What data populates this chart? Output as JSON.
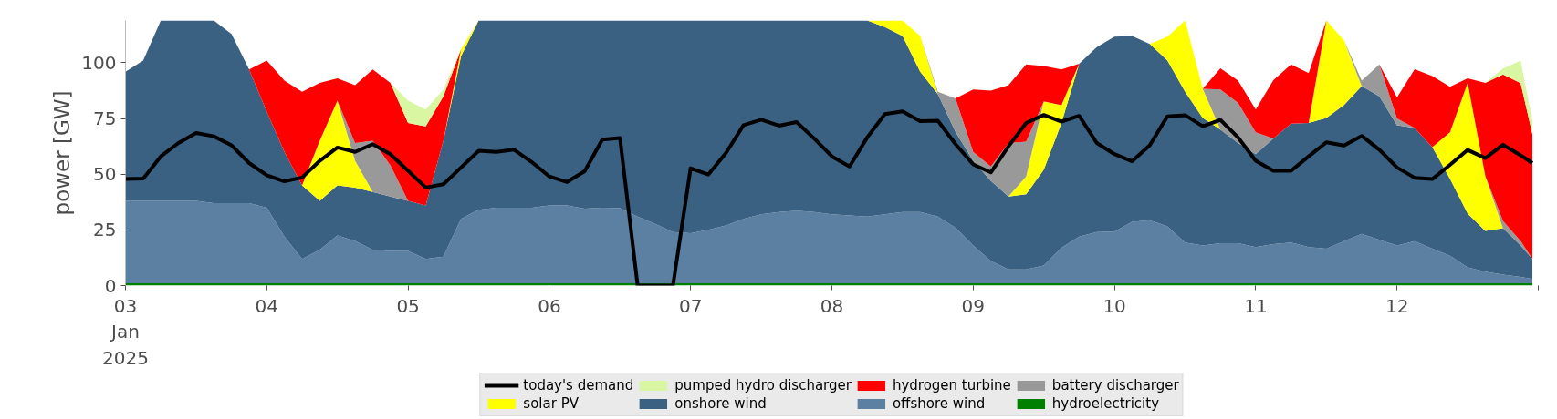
{
  "chart_data": {
    "type": "area",
    "stacked": true,
    "ylabel": "power [GW]",
    "x": [
      "2025-01-03T00:00",
      "2025-01-03T03:00",
      "2025-01-03T06:00",
      "2025-01-03T09:00",
      "2025-01-03T12:00",
      "2025-01-03T15:00",
      "2025-01-03T18:00",
      "2025-01-03T21:00",
      "2025-01-04T00:00",
      "2025-01-04T03:00",
      "2025-01-04T06:00",
      "2025-01-04T09:00",
      "2025-01-04T12:00",
      "2025-01-04T15:00",
      "2025-01-04T18:00",
      "2025-01-04T21:00",
      "2025-01-05T00:00",
      "2025-01-05T03:00",
      "2025-01-05T06:00",
      "2025-01-05T09:00",
      "2025-01-05T12:00",
      "2025-01-05T15:00",
      "2025-01-05T18:00",
      "2025-01-05T21:00",
      "2025-01-06T00:00",
      "2025-01-06T03:00",
      "2025-01-06T06:00",
      "2025-01-06T09:00",
      "2025-01-06T12:00",
      "2025-01-06T15:00",
      "2025-01-06T18:00",
      "2025-01-06T21:00",
      "2025-01-07T00:00",
      "2025-01-07T03:00",
      "2025-01-07T06:00",
      "2025-01-07T09:00",
      "2025-01-07T12:00",
      "2025-01-07T15:00",
      "2025-01-07T18:00",
      "2025-01-07T21:00",
      "2025-01-08T00:00",
      "2025-01-08T03:00",
      "2025-01-08T06:00",
      "2025-01-08T09:00",
      "2025-01-08T12:00",
      "2025-01-08T15:00",
      "2025-01-08T18:00",
      "2025-01-08T21:00",
      "2025-01-09T00:00",
      "2025-01-09T03:00",
      "2025-01-09T06:00",
      "2025-01-09T09:00",
      "2025-01-09T12:00",
      "2025-01-09T15:00",
      "2025-01-09T18:00",
      "2025-01-09T21:00",
      "2025-01-10T00:00",
      "2025-01-10T03:00",
      "2025-01-10T06:00",
      "2025-01-10T09:00",
      "2025-01-10T12:00",
      "2025-01-10T15:00",
      "2025-01-10T18:00",
      "2025-01-10T21:00",
      "2025-01-11T00:00",
      "2025-01-11T03:00",
      "2025-01-11T06:00",
      "2025-01-11T09:00",
      "2025-01-11T12:00",
      "2025-01-11T15:00",
      "2025-01-11T18:00",
      "2025-01-11T21:00",
      "2025-01-12T00:00",
      "2025-01-12T03:00",
      "2025-01-12T06:00",
      "2025-01-12T09:00",
      "2025-01-12T12:00",
      "2025-01-12T15:00",
      "2025-01-12T18:00",
      "2025-01-12T21:00",
      "2025-01-12T23:00"
    ],
    "series": [
      {
        "name": "hydroelectricity",
        "color": "#008000",
        "values": [
          1,
          1,
          1,
          1,
          1,
          1,
          1,
          1,
          1,
          1,
          1,
          1,
          1,
          1,
          1,
          1,
          1,
          1,
          1,
          1,
          1,
          1,
          1,
          1,
          1,
          1,
          1,
          1,
          1,
          1,
          1,
          1,
          1,
          1,
          1,
          1,
          1,
          1,
          1,
          1,
          1,
          1,
          1,
          1,
          1,
          1,
          1,
          1,
          1,
          1,
          1,
          1,
          1,
          1,
          1,
          1,
          1,
          1,
          1,
          1,
          1,
          1,
          1,
          1,
          1,
          1,
          1,
          1,
          1,
          1,
          1,
          1,
          1,
          1,
          1,
          1,
          1,
          1,
          1,
          1,
          1
        ]
      },
      {
        "name": "offshore wind",
        "color": "#5b80a2",
        "values": [
          37,
          37,
          37,
          37,
          37,
          36,
          36,
          36,
          34,
          21,
          11,
          15,
          21.5,
          19,
          15,
          14.5,
          14.5,
          11,
          12,
          29,
          33,
          34,
          34,
          34,
          35,
          35,
          33.6,
          34,
          33.8,
          30,
          26.7,
          23,
          22.5,
          24,
          26,
          29,
          31,
          32,
          32.6,
          32,
          31,
          30.5,
          30,
          31,
          32,
          32,
          30,
          25,
          17,
          10,
          6.3,
          6.3,
          8,
          16,
          21,
          23,
          23.2,
          27.6,
          28.3,
          25.6,
          18.3,
          17,
          18,
          18,
          16.3,
          17.6,
          18.3,
          16.3,
          15.6,
          18.9,
          22.2,
          19.6,
          17,
          18.9,
          15.6,
          12.4,
          7.2,
          5.2,
          3.9,
          2.9,
          2
        ]
      },
      {
        "name": "onshore wind",
        "color": "#3b6182",
        "values": [
          58,
          63,
          81,
          81,
          81,
          82,
          76,
          60,
          43,
          38,
          33,
          22,
          22.5,
          24,
          26,
          24.5,
          22.5,
          24,
          52,
          73,
          85,
          84,
          84,
          84,
          83,
          83,
          84.4,
          84,
          84.2,
          88,
          91.3,
          95,
          95.5,
          94,
          92,
          89,
          87,
          86,
          85.4,
          86,
          87,
          87.5,
          88,
          84,
          79,
          63,
          55,
          43,
          38,
          36,
          32.7,
          33.7,
          43,
          56,
          77.6,
          83,
          87.5,
          83.4,
          79.2,
          74.4,
          67.7,
          57.2,
          51,
          45,
          41.7,
          47.4,
          53.4,
          55.7,
          58.6,
          61.2,
          66.4,
          64.4,
          54,
          50.8,
          45.6,
          34.5,
          24.1,
          18.3,
          20.9,
          14.1,
          9
        ]
      },
      {
        "name": "solar PV",
        "color": "#ffff00",
        "values": [
          null,
          null,
          null,
          null,
          null,
          null,
          null,
          null,
          null,
          null,
          0,
          27,
          38,
          12,
          0,
          null,
          null,
          null,
          0,
          3,
          0,
          null,
          null,
          null,
          null,
          null,
          null,
          null,
          null,
          null,
          null,
          null,
          null,
          null,
          null,
          null,
          null,
          null,
          null,
          null,
          null,
          null,
          0,
          3,
          7,
          16,
          0,
          null,
          null,
          null,
          0,
          8,
          30.7,
          8,
          0,
          null,
          null,
          null,
          0,
          10.7,
          32,
          13.1,
          0,
          null,
          null,
          null,
          null,
          0,
          43.8,
          28.9,
          0,
          null,
          null,
          null,
          0,
          20.9,
          58.7,
          24.7,
          0,
          null,
          null
        ]
      },
      {
        "name": "battery discharger",
        "color": "#999999",
        "values": [
          null,
          null,
          null,
          null,
          null,
          null,
          null,
          null,
          null,
          null,
          null,
          null,
          0,
          8,
          23,
          14,
          0,
          null,
          null,
          null,
          null,
          null,
          null,
          null,
          null,
          null,
          null,
          null,
          null,
          null,
          null,
          null,
          null,
          null,
          null,
          null,
          null,
          null,
          null,
          null,
          null,
          null,
          null,
          null,
          null,
          0,
          1,
          15,
          4,
          6.5,
          24,
          15.6,
          0,
          null,
          null,
          null,
          null,
          null,
          null,
          null,
          null,
          0,
          18,
          18,
          9.8,
          0,
          null,
          null,
          null,
          0,
          2.4,
          14.3,
          3,
          0,
          null,
          null,
          null,
          0,
          3.2,
          2,
          0
        ]
      },
      {
        "name": "hydrogen turbine",
        "color": "#ff0000",
        "values": [
          null,
          null,
          null,
          null,
          null,
          null,
          null,
          0,
          23,
          32,
          42,
          26,
          10,
          26,
          32,
          37,
          35,
          35.5,
          20,
          0,
          null,
          null,
          null,
          null,
          null,
          null,
          null,
          null,
          null,
          null,
          null,
          null,
          null,
          null,
          null,
          null,
          null,
          null,
          null,
          null,
          null,
          null,
          null,
          null,
          null,
          null,
          null,
          0,
          28,
          34,
          26,
          34.7,
          15.9,
          16,
          0,
          null,
          null,
          null,
          null,
          null,
          null,
          0,
          9.5,
          10,
          10.2,
          26.2,
          26.6,
          22.4,
          0,
          null,
          null,
          0,
          9.4,
          26.4,
          31.9,
          20.5,
          2,
          41.8,
          65.8,
          70.9,
          56
        ]
      },
      {
        "name": "pumped hydro discharger",
        "color": "#d9f7a3",
        "values": [
          null,
          null,
          null,
          null,
          null,
          null,
          null,
          null,
          null,
          null,
          null,
          null,
          null,
          null,
          null,
          0,
          10,
          7.5,
          3,
          0,
          null,
          null,
          null,
          null,
          null,
          null,
          null,
          null,
          null,
          null,
          null,
          null,
          null,
          null,
          null,
          null,
          null,
          null,
          null,
          null,
          null,
          null,
          null,
          null,
          null,
          null,
          null,
          null,
          null,
          null,
          null,
          null,
          null,
          null,
          null,
          null,
          null,
          null,
          null,
          null,
          null,
          null,
          null,
          null,
          null,
          null,
          null,
          null,
          null,
          null,
          null,
          null,
          null,
          null,
          null,
          null,
          null,
          0,
          2.6,
          10.1,
          6
        ]
      },
      {
        "name": "today's demand",
        "type": "line",
        "color": "#000000",
        "values": [
          47.8,
          48,
          58,
          64,
          68.5,
          67,
          63,
          55,
          49.5,
          46.8,
          48.5,
          56,
          62,
          60,
          63.5,
          59,
          51.5,
          44,
          45.5,
          53,
          60.5,
          60,
          61,
          55.5,
          49,
          46.5,
          51.3,
          65.5,
          66.2,
          0,
          0,
          0,
          52.7,
          49.8,
          59.5,
          72,
          74.5,
          71.8,
          73.4,
          66,
          58,
          53.5,
          66.5,
          77,
          78.2,
          73.8,
          74,
          63.5,
          54.4,
          50.8,
          62.5,
          73,
          76.6,
          73.6,
          76.2,
          64,
          59,
          55.8,
          63,
          76,
          76.5,
          71.5,
          74.4,
          66.5,
          56,
          51.5,
          51.5,
          58,
          64.3,
          62.9,
          67.2,
          61,
          53,
          48.4,
          47.8,
          54.2,
          60.9,
          57.2,
          63.2,
          58.5,
          55
        ]
      }
    ],
    "xlim": [
      "2025-01-03",
      "2025-01-13"
    ],
    "xticks": [
      {
        "value": "2025-01-03",
        "label": "03\nJan\n2025"
      },
      {
        "value": "2025-01-04",
        "label": "04"
      },
      {
        "value": "2025-01-05",
        "label": "05"
      },
      {
        "value": "2025-01-06",
        "label": "06"
      },
      {
        "value": "2025-01-07",
        "label": "07"
      },
      {
        "value": "2025-01-08",
        "label": "08"
      },
      {
        "value": "2025-01-09",
        "label": "09"
      },
      {
        "value": "2025-01-10",
        "label": "10"
      },
      {
        "value": "2025-01-11",
        "label": "11"
      },
      {
        "value": "2025-01-12",
        "label": "12"
      },
      {
        "value": "2025-01-13",
        "label": null
      }
    ],
    "ylim": [
      0,
      119
    ],
    "yticks": [
      0,
      25,
      50,
      75,
      100
    ],
    "legend": "bottom",
    "grid": false
  }
}
